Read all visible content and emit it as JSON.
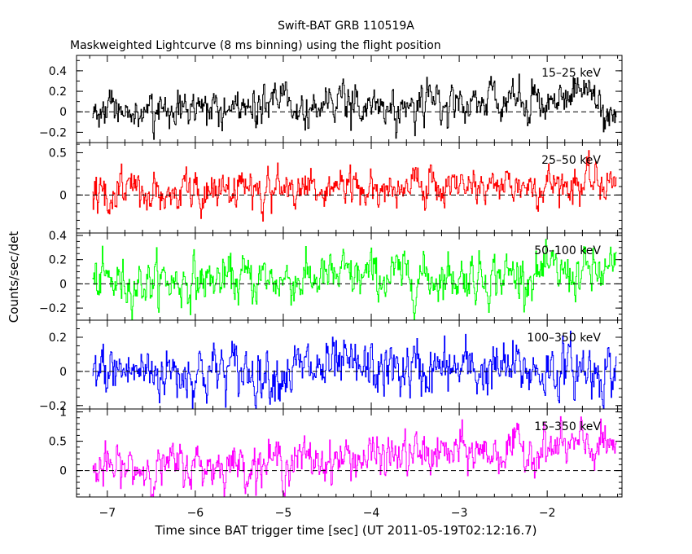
{
  "chart_data": {
    "type": "line",
    "title": "Swift-BAT GRB 110519A",
    "subtitle": "Maskweighted Lightcurve (8 ms binning) using the flight position",
    "xlabel": "Time since BAT trigger time [sec] (UT 2011-05-19T02:12:16.7)",
    "ylabel": "Counts/sec/det",
    "xlim": [
      -7.35,
      -1.15
    ],
    "x_ticks": [
      -7,
      -6,
      -5,
      -4,
      -3,
      -2
    ],
    "x_tick_labels": [
      "−7",
      "−6",
      "−5",
      "−4",
      "−3",
      "−2"
    ],
    "x_range": [
      -7.17,
      -1.22
    ],
    "bin_sec": 0.008,
    "grid": false,
    "legend": "none",
    "panels": [
      {
        "name": "15–25 keV",
        "color": "#000000",
        "ylim": [
          -0.3,
          0.55
        ],
        "y_ticks": [
          -0.2,
          0,
          0.2,
          0.4
        ],
        "y_tick_labels": [
          "−0.2",
          "0",
          "0.2",
          "0.4"
        ],
        "baseline": 0.0,
        "trend_end": 0.12,
        "noise": 0.11,
        "zero_line": true,
        "label": "15–25 keV"
      },
      {
        "name": "25–50 keV",
        "color": "#ff0000",
        "ylim": [
          -0.45,
          0.62
        ],
        "y_ticks": [
          0,
          0.5
        ],
        "y_tick_labels": [
          "0",
          "0.5"
        ],
        "baseline": 0.0,
        "trend_end": 0.15,
        "noise": 0.12,
        "zero_line": true,
        "label": "25–50 keV"
      },
      {
        "name": "50–100 keV",
        "color": "#00ff00",
        "ylim": [
          -0.3,
          0.42
        ],
        "y_ticks": [
          -0.2,
          0,
          0.2,
          0.4
        ],
        "y_tick_labels": [
          "−0.2",
          "0",
          "0.2",
          "0.4"
        ],
        "baseline": 0.01,
        "trend_end": 0.09,
        "noise": 0.1,
        "zero_line": true,
        "label": "50–100 keV"
      },
      {
        "name": "100–350 keV",
        "color": "#0000ff",
        "ylim": [
          -0.22,
          0.3
        ],
        "y_ticks": [
          -0.2,
          0,
          0.2
        ],
        "y_tick_labels": [
          "−0.2",
          "0",
          "0.2"
        ],
        "baseline": 0.0,
        "trend_end": 0.01,
        "noise": 0.085,
        "zero_line": true,
        "label": "100–350 keV"
      },
      {
        "name": "15–350 keV",
        "color": "#ff00ff",
        "ylim": [
          -0.45,
          1.05
        ],
        "y_ticks": [
          0,
          0.5,
          1
        ],
        "y_tick_labels": [
          "0",
          "0.5",
          "1"
        ],
        "baseline": 0.0,
        "trend_end": 0.42,
        "noise": 0.19,
        "zero_line": true,
        "label": "15–350 keV"
      }
    ]
  }
}
